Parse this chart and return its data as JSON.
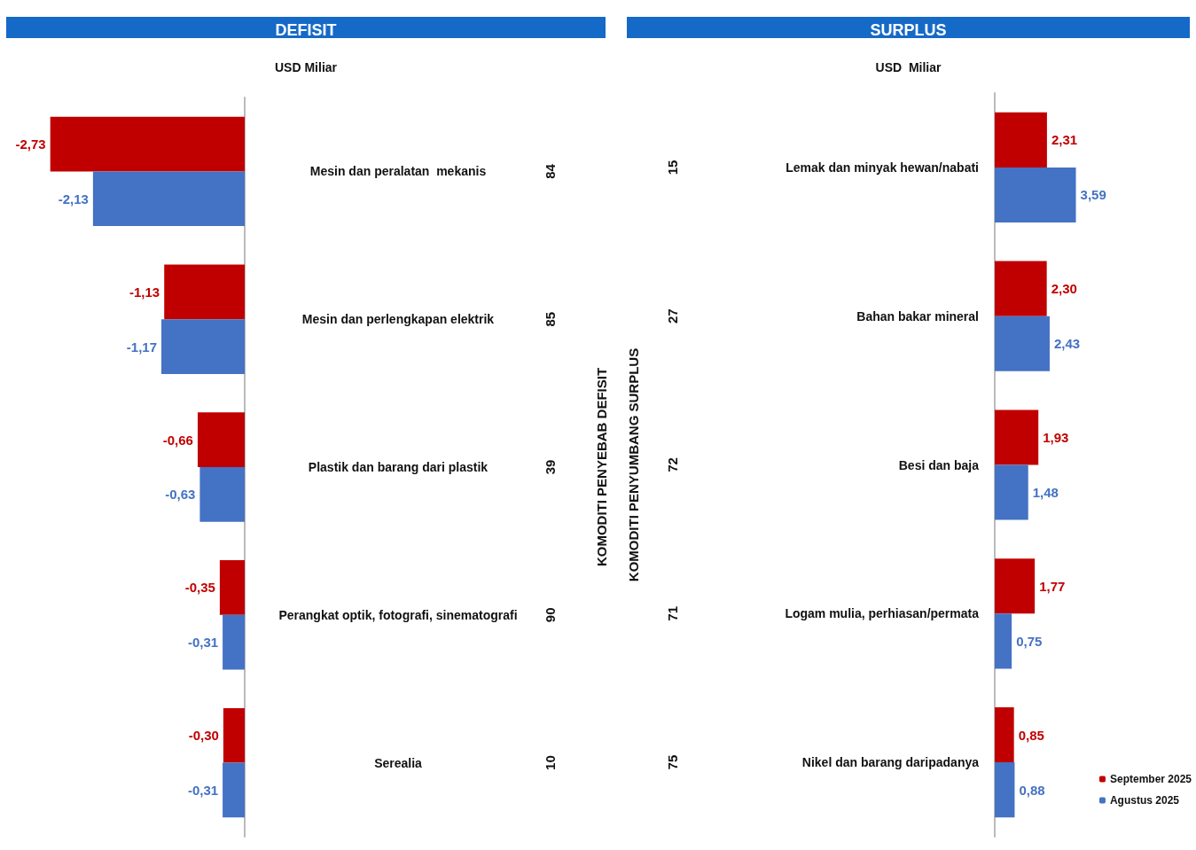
{
  "chart_data": [
    {
      "type": "bar",
      "orientation": "horizontal",
      "title": "DEFISIT",
      "subtitle": "USD Miliar",
      "ylabel": "KOMODITI PENYEBAB DEFISIT",
      "categories": [
        "Mesin dan peralatan  mekanis",
        "Mesin dan perlengkapan elektrik",
        "Plastik dan barang dari plastik",
        "Perangkat optik, fotografi, sinematografi",
        "Serealia"
      ],
      "annotations": [
        "84",
        "85",
        "39",
        "90",
        "10"
      ],
      "series": [
        {
          "color": "#c00000",
          "values": [
            -2.73,
            -1.13,
            -0.66,
            -0.35,
            -0.3
          ],
          "value_labels": [
            "-2,73",
            "-1,13",
            "-0,66",
            "-0,35",
            "-0,30"
          ]
        },
        {
          "color": "#4472c4",
          "values": [
            -2.13,
            -1.17,
            -0.63,
            -0.31,
            -0.31
          ],
          "value_labels": [
            "-2,13",
            "-1,17",
            "-0,63",
            "-0,31",
            "-0,31"
          ]
        }
      ],
      "legend": false,
      "grid": false
    },
    {
      "type": "bar",
      "orientation": "horizontal",
      "title": "SURPLUS",
      "subtitle": "USD  Miliar",
      "ylabel": "KOMODITI PENYUMBANG SURPLUS",
      "categories": [
        "Lemak dan minyak hewan/nabati",
        "Bahan bakar mineral",
        "Besi dan baja",
        "Logam mulia, perhiasan/permata",
        "Nikel dan barang daripadanya"
      ],
      "annotations": [
        "15",
        "27",
        "72",
        "71",
        "75"
      ],
      "series": [
        {
          "name": "September 2025",
          "color": "#c00000",
          "values": [
            2.31,
            2.3,
            1.93,
            1.77,
            0.85
          ],
          "value_labels": [
            "2,31",
            "2,30",
            "1,93",
            "1,77",
            "0,85"
          ]
        },
        {
          "name": "Agustus 2025",
          "color": "#4472c4",
          "values": [
            3.59,
            2.43,
            1.48,
            0.75,
            0.88
          ],
          "value_labels": [
            "3,59",
            "2,43",
            "1,48",
            "0,75",
            "0,88"
          ]
        }
      ],
      "legend": "bottom right",
      "grid": false
    }
  ]
}
